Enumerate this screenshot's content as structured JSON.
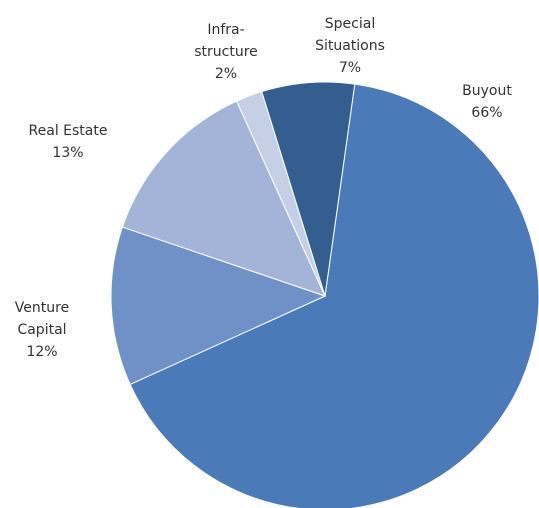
{
  "chart_data": {
    "type": "pie",
    "categories": [
      "Buyout",
      "Venture\nCapital",
      "Real Estate",
      "Infra-\nstructure",
      "Special\nSituations"
    ],
    "values": [
      66,
      12,
      13,
      2,
      7
    ],
    "value_labels": [
      "66%",
      "12%",
      "13%",
      "2%",
      "7%"
    ],
    "colors": [
      "#4a7ab8",
      "#7090c8",
      "#a3b4d8",
      "#c5d0e6",
      "#355e90"
    ]
  }
}
